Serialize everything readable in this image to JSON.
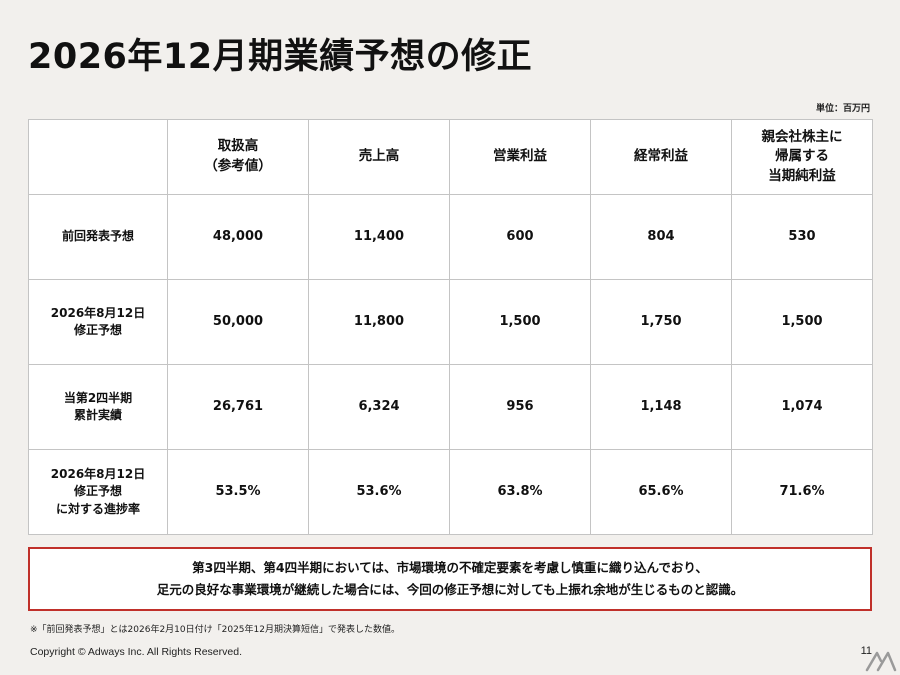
{
  "page": {
    "title": "2026年12月期業績予想の修正",
    "unit_label": "単位：百万円",
    "page_number": "11",
    "copyright": "Copyright © Adways Inc. All Rights Reserved."
  },
  "table": {
    "headers": [
      "",
      "取扱高\n（参考値）",
      "売上高",
      "営業利益",
      "経常利益",
      "親会社株主に\n帰属する\n当期純利益"
    ],
    "rows": [
      {
        "label": "前回発表予想",
        "values": [
          "48,000",
          "11,400",
          "600",
          "804",
          "530"
        ]
      },
      {
        "label": "2026年8月12日\n修正予想",
        "values": [
          "50,000",
          "11,800",
          "1,500",
          "1,750",
          "1,500"
        ]
      },
      {
        "label": "当第2四半期\n累計実績",
        "values": [
          "26,761",
          "6,324",
          "956",
          "1,148",
          "1,074"
        ]
      },
      {
        "label": "2026年8月12日\n修正予想\nに対する進捗率",
        "values": [
          "53.5%",
          "53.6%",
          "63.8%",
          "65.6%",
          "71.6%"
        ]
      }
    ]
  },
  "note": {
    "line1": "第3四半期、第4四半期においては、市場環境の不確定要素を考慮し慎重に織り込んでおり、",
    "line2": "足元の良好な事業環境が継続した場合には、今回の修正予想に対しても上振れ余地が生じるものと認識。"
  },
  "footnote": "※「前回発表予想」とは2026年2月10日付け「2025年12月期決算短信」で発表した数値。",
  "colors": {
    "accent_border": "#c0302a",
    "background": "#f2f0ed",
    "table_bg": "#ffffff",
    "grid_line": "#c4c4c4"
  },
  "watermark_icon": "brand-logo-icon"
}
